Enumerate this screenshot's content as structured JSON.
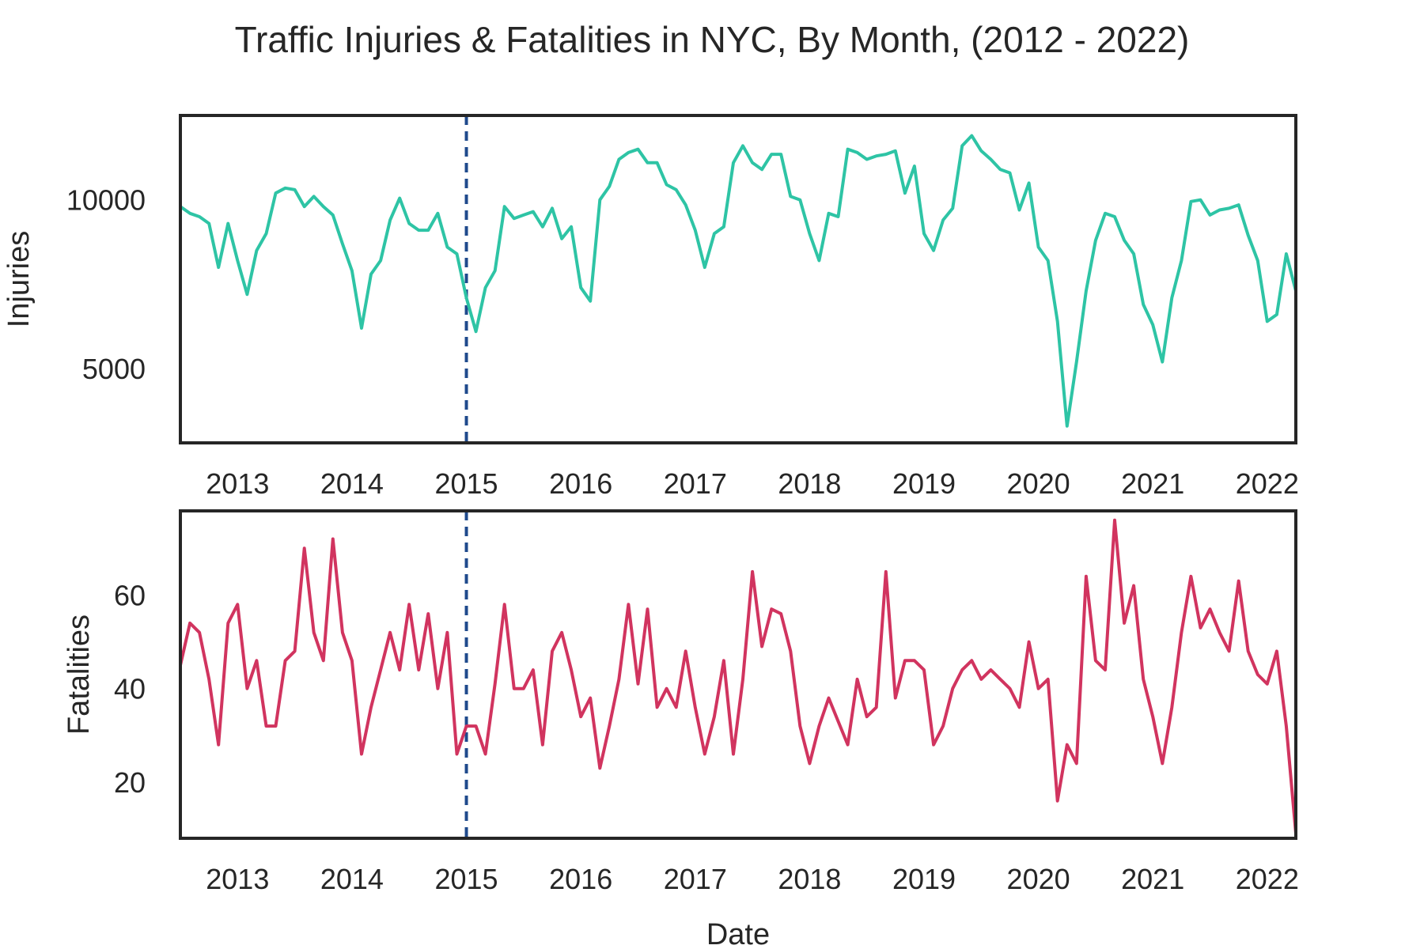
{
  "chart_data": {
    "title": "Traffic Injuries & Fatalities in NYC, By Month, (2012 - 2022)",
    "type": "line",
    "x_tick_labels": [
      "2013",
      "2014",
      "2015",
      "2016",
      "2017",
      "2018",
      "2019",
      "2020",
      "2021",
      "2022"
    ],
    "xlim": [
      "2012-07",
      "2022-04"
    ],
    "xlabel": "Date",
    "reference_line": {
      "x": "2015-01",
      "style": "dashed",
      "color": "#1f4a8c"
    },
    "panels": [
      {
        "ylabel": "Injuries",
        "ylim": [
          2800,
          12500
        ],
        "y_ticks": [
          5000,
          10000
        ],
        "color": "#2ec4a5",
        "x": [
          "2012-07",
          "2012-08",
          "2012-09",
          "2012-10",
          "2012-11",
          "2012-12",
          "2013-01",
          "2013-02",
          "2013-03",
          "2013-04",
          "2013-05",
          "2013-06",
          "2013-07",
          "2013-08",
          "2013-09",
          "2013-10",
          "2013-11",
          "2013-12",
          "2014-01",
          "2014-02",
          "2014-03",
          "2014-04",
          "2014-05",
          "2014-06",
          "2014-07",
          "2014-08",
          "2014-09",
          "2014-10",
          "2014-11",
          "2014-12",
          "2015-01",
          "2015-02",
          "2015-03",
          "2015-04",
          "2015-05",
          "2015-06",
          "2015-07",
          "2015-08",
          "2015-09",
          "2015-10",
          "2015-11",
          "2015-12",
          "2016-01",
          "2016-02",
          "2016-03",
          "2016-04",
          "2016-05",
          "2016-06",
          "2016-07",
          "2016-08",
          "2016-09",
          "2016-10",
          "2016-11",
          "2016-12",
          "2017-01",
          "2017-02",
          "2017-03",
          "2017-04",
          "2017-05",
          "2017-06",
          "2017-07",
          "2017-08",
          "2017-09",
          "2017-10",
          "2017-11",
          "2017-12",
          "2018-01",
          "2018-02",
          "2018-03",
          "2018-04",
          "2018-05",
          "2018-06",
          "2018-07",
          "2018-08",
          "2018-09",
          "2018-10",
          "2018-11",
          "2018-12",
          "2019-01",
          "2019-02",
          "2019-03",
          "2019-04",
          "2019-05",
          "2019-06",
          "2019-07",
          "2019-08",
          "2019-09",
          "2019-10",
          "2019-11",
          "2019-12",
          "2020-01",
          "2020-02",
          "2020-03",
          "2020-04",
          "2020-05",
          "2020-06",
          "2020-07",
          "2020-08",
          "2020-09",
          "2020-10",
          "2020-11",
          "2020-12",
          "2021-01",
          "2021-02",
          "2021-03",
          "2021-04",
          "2021-05",
          "2021-06",
          "2021-07",
          "2021-08",
          "2021-09",
          "2021-10",
          "2021-11",
          "2021-12",
          "2022-01",
          "2022-02",
          "2022-03",
          "2022-04"
        ],
        "values": [
          9800,
          9600,
          9500,
          9300,
          8000,
          9300,
          8200,
          7200,
          8500,
          9000,
          10200,
          10350,
          10300,
          9800,
          10100,
          9800,
          9550,
          8700,
          7900,
          6200,
          7800,
          8200,
          9400,
          10050,
          9300,
          9100,
          9100,
          9600,
          8600,
          8400,
          7100,
          6100,
          7400,
          7900,
          9800,
          9450,
          9550,
          9650,
          9200,
          9750,
          8850,
          9200,
          7400,
          7000,
          10000,
          10400,
          11200,
          11400,
          11500,
          11100,
          11100,
          10450,
          10300,
          9850,
          9100,
          8000,
          9000,
          9200,
          11100,
          11600,
          11100,
          10900,
          11350,
          11350,
          10100,
          10000,
          9000,
          8200,
          9600,
          9500,
          11500,
          11400,
          11200,
          11300,
          11350,
          11450,
          10200,
          11000,
          9000,
          8500,
          9400,
          9750,
          11600,
          11900,
          11450,
          11200,
          10900,
          10800,
          9700,
          10500,
          8600,
          8200,
          6400,
          3300,
          5200,
          7300,
          8800,
          9600,
          9500,
          8800,
          8400,
          6900,
          6300,
          5200,
          7100,
          8200,
          9950,
          10000,
          9550,
          9700,
          9750,
          9850,
          8950,
          8200,
          6400,
          6600,
          8400,
          7300
        ]
      },
      {
        "ylabel": "Fatalities",
        "ylim": [
          8,
          78
        ],
        "y_ticks": [
          20,
          40,
          60
        ],
        "color": "#d1345f",
        "x": [
          "2012-07",
          "2012-08",
          "2012-09",
          "2012-10",
          "2012-11",
          "2012-12",
          "2013-01",
          "2013-02",
          "2013-03",
          "2013-04",
          "2013-05",
          "2013-06",
          "2013-07",
          "2013-08",
          "2013-09",
          "2013-10",
          "2013-11",
          "2013-12",
          "2014-01",
          "2014-02",
          "2014-03",
          "2014-04",
          "2014-05",
          "2014-06",
          "2014-07",
          "2014-08",
          "2014-09",
          "2014-10",
          "2014-11",
          "2014-12",
          "2015-01",
          "2015-02",
          "2015-03",
          "2015-04",
          "2015-05",
          "2015-06",
          "2015-07",
          "2015-08",
          "2015-09",
          "2015-10",
          "2015-11",
          "2015-12",
          "2016-01",
          "2016-02",
          "2016-03",
          "2016-04",
          "2016-05",
          "2016-06",
          "2016-07",
          "2016-08",
          "2016-09",
          "2016-10",
          "2016-11",
          "2016-12",
          "2017-01",
          "2017-02",
          "2017-03",
          "2017-04",
          "2017-05",
          "2017-06",
          "2017-07",
          "2017-08",
          "2017-09",
          "2017-10",
          "2017-11",
          "2017-12",
          "2018-01",
          "2018-02",
          "2018-03",
          "2018-04",
          "2018-05",
          "2018-06",
          "2018-07",
          "2018-08",
          "2018-09",
          "2018-10",
          "2018-11",
          "2018-12",
          "2019-01",
          "2019-02",
          "2019-03",
          "2019-04",
          "2019-05",
          "2019-06",
          "2019-07",
          "2019-08",
          "2019-09",
          "2019-10",
          "2019-11",
          "2019-12",
          "2020-01",
          "2020-02",
          "2020-03",
          "2020-04",
          "2020-05",
          "2020-06",
          "2020-07",
          "2020-08",
          "2020-09",
          "2020-10",
          "2020-11",
          "2020-12",
          "2021-01",
          "2021-02",
          "2021-03",
          "2021-04",
          "2021-05",
          "2021-06",
          "2021-07",
          "2021-08",
          "2021-09",
          "2021-10",
          "2021-11",
          "2021-12",
          "2022-01",
          "2022-02",
          "2022-03",
          "2022-04"
        ],
        "values": [
          45,
          54,
          52,
          42,
          28,
          54,
          58,
          40,
          46,
          32,
          32,
          46,
          48,
          70,
          52,
          46,
          72,
          52,
          46,
          26,
          36,
          44,
          52,
          44,
          58,
          44,
          56,
          40,
          52,
          26,
          32,
          32,
          26,
          41,
          58,
          40,
          40,
          44,
          28,
          48,
          52,
          44,
          34,
          38,
          23,
          32,
          42,
          58,
          41,
          57,
          36,
          40,
          36,
          48,
          36,
          26,
          34,
          46,
          26,
          42,
          65,
          49,
          57,
          56,
          48,
          32,
          24,
          32,
          38,
          33,
          28,
          42,
          34,
          36,
          65,
          38,
          46,
          46,
          44,
          28,
          32,
          40,
          44,
          46,
          42,
          44,
          42,
          40,
          36,
          50,
          40,
          42,
          16,
          28,
          24,
          64,
          46,
          44,
          76,
          54,
          62,
          42,
          34,
          24,
          36,
          52,
          64,
          53,
          57,
          52,
          48,
          63,
          48,
          43,
          41,
          48,
          32,
          9
        ]
      }
    ]
  }
}
